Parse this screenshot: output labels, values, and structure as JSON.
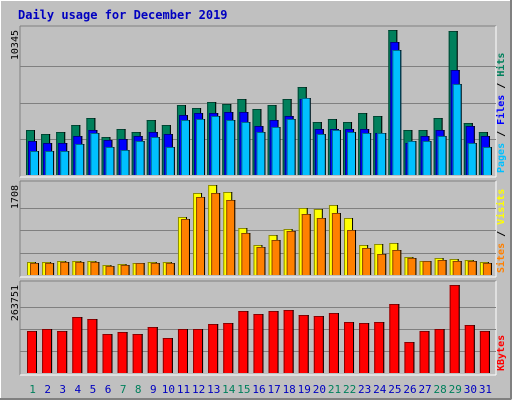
{
  "chart_data": {
    "type": "bar",
    "title": "Daily usage for December 2019",
    "colors": {
      "background": "#c0c0c0",
      "title": "#0000c0",
      "hits": "#00805c",
      "files": "#0000ff",
      "pages": "#00c0ff",
      "visits": "#ffff00",
      "sites": "#ff8000",
      "kbytes": "#ff0000",
      "weekday_label": "#0000c0",
      "weekend_label": "#00805c",
      "max_label": "#000000"
    },
    "categories": [
      "1",
      "2",
      "3",
      "4",
      "5",
      "6",
      "7",
      "8",
      "9",
      "10",
      "11",
      "12",
      "13",
      "14",
      "15",
      "16",
      "17",
      "18",
      "19",
      "20",
      "21",
      "22",
      "23",
      "24",
      "25",
      "26",
      "27",
      "28",
      "29",
      "30",
      "31"
    ],
    "weekend_days": [
      "1",
      "7",
      "8",
      "14",
      "15",
      "21",
      "22",
      "28",
      "29"
    ],
    "panels": [
      {
        "id": "requests",
        "max_label": "10345",
        "ylim": [
          0,
          10345
        ],
        "legend": [
          "Pages",
          "Files",
          "Hits"
        ],
        "series": [
          {
            "name": "Hits",
            "color": "#00805c",
            "values": [
              3200,
              2900,
              3100,
              3600,
              4100,
              2700,
              3300,
              3100,
              3900,
              3600,
              5000,
              4800,
              5200,
              5100,
              5400,
              4700,
              5000,
              5400,
              6300,
              3800,
              4000,
              3800,
              4400,
              4200,
              10345,
              3200,
              3200,
              4100,
              10300,
              3700,
              3100
            ]
          },
          {
            "name": "Files",
            "color": "#0000ff",
            "values": [
              2400,
              2300,
              2300,
              2800,
              3200,
              2500,
              2600,
              2800,
              3100,
              2900,
              4300,
              4400,
              4400,
              4500,
              4500,
              3500,
              3900,
              4200,
              5400,
              3300,
              3300,
              3300,
              3300,
              3000,
              9500,
              2300,
              2800,
              3200,
              7500,
              3500,
              2800
            ]
          },
          {
            "name": "Pages",
            "color": "#00c0ff",
            "values": [
              1700,
              1700,
              1700,
              2200,
              3000,
              2000,
              1800,
              2400,
              2700,
              2000,
              3900,
              4000,
              4200,
              3900,
              3800,
              3100,
              3400,
              4000,
              5500,
              2900,
              3200,
              3100,
              3000,
              3000,
              8900,
              2400,
              2400,
              2800,
              6500,
              2300,
              2000
            ]
          }
        ]
      },
      {
        "id": "visits",
        "max_label": "1708",
        "ylim": [
          0,
          1708
        ],
        "legend": [
          "Sites",
          "Visits"
        ],
        "series": [
          {
            "name": "Visits",
            "color": "#ffff00",
            "values": [
              240,
              240,
              260,
              270,
              260,
              190,
              200,
              230,
              250,
              240,
              1100,
              1550,
              1708,
              1570,
              900,
              560,
              760,
              880,
              1280,
              1250,
              1330,
              1090,
              560,
              580,
              600,
              340,
              260,
              320,
              310,
              290,
              240
            ]
          },
          {
            "name": "Sites",
            "color": "#ff8000",
            "values": [
              230,
              230,
              250,
              250,
              250,
              180,
              190,
              220,
              230,
              230,
              1060,
              1480,
              1560,
              1420,
              790,
              540,
              660,
              830,
              1150,
              1080,
              1180,
              850,
              510,
              400,
              480,
              320,
              270,
              280,
              270,
              270,
              230
            ]
          }
        ]
      },
      {
        "id": "kbytes",
        "max_label": "263751",
        "ylim": [
          0,
          263751
        ],
        "legend": [
          "KBytes"
        ],
        "series": [
          {
            "name": "KBytes",
            "color": "#ff0000",
            "values": [
              125000,
              131000,
              125000,
              168000,
              161000,
              116000,
              124000,
              117000,
              139000,
              106000,
              133000,
              133000,
              146000,
              150000,
              186000,
              176000,
              186000,
              188000,
              174000,
              171000,
              180000,
              152000,
              150000,
              153000,
              207000,
              94000,
              126000,
              131000,
              263751,
              145000,
              126000
            ]
          }
        ]
      }
    ]
  }
}
